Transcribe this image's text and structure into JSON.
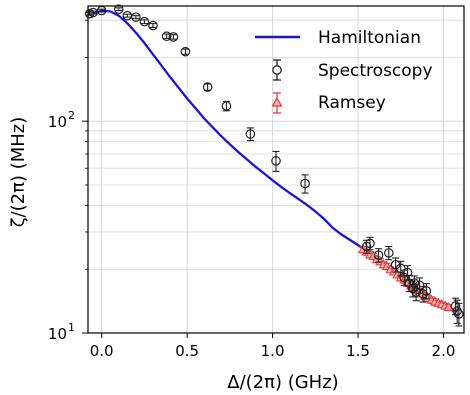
{
  "chart_data": {
    "type": "line",
    "xlabel": "Δ/(2π) (GHz)",
    "ylabel": "ζ/(2π) (MHz)",
    "xlim": [
      -0.08,
      2.12
    ],
    "ylim": [
      10,
      350
    ],
    "y_scale": "log",
    "grid": true,
    "legend_placement": "top-right",
    "x_ticks": [
      "0.0",
      "0.5",
      "1.0",
      "1.5",
      "2.0"
    ],
    "x_tick_values": [
      0.0,
      0.5,
      1.0,
      1.5,
      2.0
    ],
    "y_major_ticks": [
      10,
      100
    ],
    "y_tick_labels": [
      {
        "value": 10,
        "base": "10",
        "exp": "1"
      },
      {
        "value": 100,
        "base": "10",
        "exp": "2"
      }
    ],
    "y_minor_ticks": [
      20,
      30,
      40,
      50,
      60,
      70,
      80,
      90,
      200,
      300
    ],
    "colors": {
      "hamiltonian": "#1616d8",
      "spectroscopy": "#222222",
      "ramsey": "#e23a3a",
      "grid": "#d6d6d6"
    },
    "series": [
      {
        "name": "Hamiltonian",
        "kind": "line",
        "x": [
          -0.05,
          0.0,
          0.05,
          0.1,
          0.15,
          0.2,
          0.25,
          0.3,
          0.35,
          0.4,
          0.45,
          0.5,
          0.55,
          0.6,
          0.65,
          0.7,
          0.75,
          0.8,
          0.85,
          0.9,
          0.95,
          1.0,
          1.05,
          1.1,
          1.15,
          1.2,
          1.25,
          1.3,
          1.35,
          1.4,
          1.45,
          1.5,
          1.55,
          1.6,
          1.65,
          1.7,
          1.75,
          1.8,
          1.85,
          1.9,
          1.95,
          2.0,
          2.05,
          2.08
        ],
        "y": [
          322,
          333,
          330,
          315,
          290,
          262,
          234,
          207,
          183,
          162,
          144,
          128,
          115,
          103,
          93.5,
          85,
          77.8,
          71.5,
          66.0,
          61.0,
          56.7,
          52.6,
          49.0,
          45.8,
          43.0,
          40.3,
          37.5,
          34.6,
          31.5,
          29.3,
          27.6,
          26.0,
          24.5,
          22.9,
          21.4,
          19.9,
          18.5,
          17.2,
          16.0,
          14.9,
          14.0,
          13.3,
          12.8,
          12.7
        ]
      },
      {
        "name": "Spectroscopy",
        "kind": "errorbar",
        "x": [
          -0.07,
          -0.05,
          0.0,
          0.1,
          0.15,
          0.2,
          0.25,
          0.3,
          0.38,
          0.42,
          0.49,
          0.62,
          0.73,
          0.87,
          1.02,
          1.19,
          1.55,
          1.57,
          1.62,
          1.68,
          1.72,
          1.75,
          1.77,
          1.79,
          1.8,
          1.82,
          1.83,
          1.84,
          1.86,
          1.88,
          1.9,
          2.07,
          2.08,
          2.09
        ],
        "y": [
          322,
          326,
          333,
          338,
          315,
          310,
          295,
          283,
          252,
          250,
          213,
          145,
          118,
          87,
          65,
          50.8,
          25.6,
          26.5,
          23.3,
          23.9,
          21.0,
          20.2,
          18.3,
          19.3,
          17.2,
          16.2,
          17.2,
          15.6,
          16.8,
          15.3,
          15.8,
          13.4,
          12.7,
          12.3
        ],
        "yerr": [
          5,
          5,
          5,
          5,
          5,
          5,
          6,
          6,
          6,
          6,
          6,
          5,
          6,
          6,
          7,
          5,
          1.8,
          1.8,
          1.7,
          1.7,
          1.6,
          1.6,
          1.5,
          1.5,
          1.5,
          1.4,
          1.4,
          1.4,
          1.4,
          1.3,
          1.3,
          1.2,
          1.6,
          1.5
        ]
      },
      {
        "name": "Ramsey",
        "kind": "errorbar",
        "x": [
          1.53,
          1.55,
          1.57,
          1.59,
          1.61,
          1.63,
          1.65,
          1.67,
          1.69,
          1.71,
          1.73,
          1.75,
          1.77,
          1.79,
          1.81,
          1.83,
          1.85,
          1.87,
          1.89,
          1.91,
          1.93,
          1.95,
          1.97,
          1.99,
          2.01,
          2.03
        ],
        "y": [
          24.8,
          24.1,
          23.4,
          23.0,
          22.2,
          21.7,
          21.0,
          20.6,
          19.9,
          19.4,
          18.8,
          18.2,
          17.8,
          17.2,
          16.7,
          16.3,
          15.8,
          15.3,
          14.9,
          14.6,
          14.3,
          14.0,
          13.8,
          13.6,
          13.4,
          13.2
        ],
        "yerr": [
          0.8,
          0.8,
          0.8,
          0.7,
          0.7,
          0.7,
          0.7,
          0.7,
          0.6,
          0.6,
          0.6,
          0.6,
          0.6,
          0.6,
          0.5,
          0.5,
          0.5,
          0.5,
          0.5,
          0.5,
          0.5,
          0.5,
          0.4,
          0.4,
          0.4,
          0.4
        ]
      }
    ]
  }
}
